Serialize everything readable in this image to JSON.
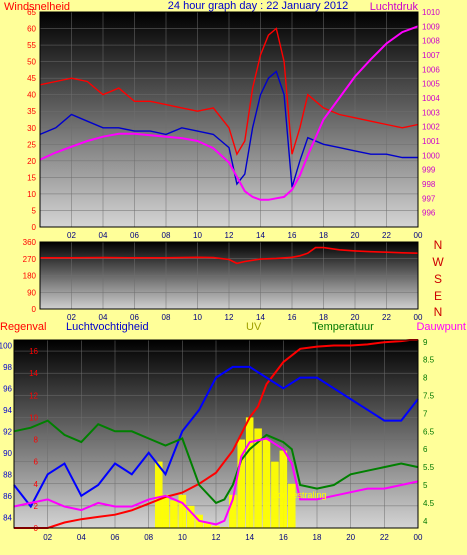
{
  "chart_data": [
    {
      "type": "line",
      "title": "24 hour graph day : 22 January 2012",
      "left_label": "Windsnelheid",
      "right_label": "Luchtdruk",
      "x_ticks": [
        "02",
        "04",
        "06",
        "08",
        "10",
        "12",
        "14",
        "16",
        "18",
        "20",
        "22",
        "00"
      ],
      "x_range": [
        0,
        24
      ],
      "left_axis": {
        "range": [
          0,
          65
        ],
        "ticks": [
          0,
          5,
          10,
          15,
          20,
          25,
          30,
          35,
          40,
          45,
          50,
          55,
          60,
          65
        ]
      },
      "right_axis": {
        "range": [
          995,
          1010
        ],
        "ticks": [
          996,
          997,
          998,
          999,
          1000,
          1001,
          1002,
          1003,
          1004,
          1005,
          1006,
          1007,
          1008,
          1009,
          1010
        ]
      },
      "series": [
        {
          "color": "#ff0000",
          "axis": "left",
          "x": [
            0,
            1,
            2,
            3,
            4,
            5,
            6,
            7,
            8,
            9,
            10,
            11,
            12,
            12.5,
            13,
            13.5,
            14,
            14.5,
            15,
            15.5,
            16,
            16.5,
            17,
            18,
            19,
            20,
            21,
            22,
            23,
            24
          ],
          "y": [
            43,
            44,
            45,
            44,
            40,
            42,
            38,
            38,
            37,
            36,
            35,
            36,
            30,
            22,
            26,
            42,
            52,
            58,
            60,
            50,
            22,
            30,
            40,
            36,
            34,
            33,
            32,
            31,
            30,
            31
          ]
        },
        {
          "color": "#0000cc",
          "axis": "left",
          "x": [
            0,
            1,
            2,
            3,
            4,
            5,
            6,
            7,
            8,
            9,
            10,
            11,
            12,
            12.5,
            13,
            13.5,
            14,
            14.5,
            15,
            15.5,
            16,
            16.5,
            17,
            18,
            19,
            20,
            21,
            22,
            23,
            24
          ],
          "y": [
            28,
            30,
            34,
            32,
            30,
            30,
            29,
            29,
            28,
            30,
            29,
            28,
            24,
            13,
            16,
            30,
            40,
            45,
            47,
            40,
            12,
            20,
            27,
            25,
            24,
            23,
            22,
            22,
            21,
            21
          ]
        },
        {
          "color": "#ff00ff",
          "axis": "right",
          "x": [
            0,
            1,
            2,
            3,
            4,
            5,
            6,
            7,
            8,
            9,
            10,
            11,
            12,
            12.5,
            13,
            13.5,
            14,
            14.5,
            15,
            15.5,
            16,
            16.5,
            17,
            18,
            19,
            20,
            21,
            22,
            23,
            24
          ],
          "y": [
            999.7,
            1000.2,
            1000.6,
            1001.0,
            1001.3,
            1001.5,
            1001.5,
            1001.4,
            1001.3,
            1001.2,
            1001.0,
            1000.5,
            999.5,
            998.5,
            997.5,
            997.1,
            996.9,
            996.9,
            997.0,
            997.1,
            997.6,
            998.6,
            1000.0,
            1002.5,
            1004.0,
            1005.5,
            1006.7,
            1007.8,
            1008.6,
            1009.0
          ]
        }
      ]
    },
    {
      "type": "line",
      "right_label_letters": [
        "N",
        "W",
        "S",
        "E",
        "N"
      ],
      "x_ticks": [
        "02",
        "04",
        "06",
        "08",
        "10",
        "12",
        "14",
        "16",
        "18",
        "20",
        "22",
        "00"
      ],
      "x_range": [
        0,
        24
      ],
      "y_range": [
        0,
        360
      ],
      "y_ticks": [
        0,
        90,
        180,
        270,
        360
      ],
      "series": [
        {
          "color": "#ff0000",
          "x": [
            0,
            2,
            4,
            6,
            8,
            10,
            11,
            12,
            12.5,
            13,
            14,
            15,
            16,
            16.5,
            17,
            17.5,
            18,
            19,
            20,
            21,
            22,
            23,
            24
          ],
          "y": [
            275,
            275,
            276,
            275,
            275,
            278,
            276,
            266,
            245,
            255,
            268,
            272,
            278,
            286,
            300,
            330,
            330,
            318,
            312,
            308,
            305,
            302,
            300
          ]
        }
      ]
    },
    {
      "type": "line",
      "labels": [
        "Regenval",
        "Luchtvochtigheid",
        "UV",
        "Temperatuur",
        "Dauwpunt"
      ],
      "annotation": "Zonnestraling",
      "x_ticks": [
        "02",
        "04",
        "06",
        "08",
        "10",
        "12",
        "14",
        "16",
        "18",
        "20",
        "22",
        "00"
      ],
      "x_range": [
        0,
        24
      ],
      "axis_regen": {
        "range": [
          0,
          17
        ],
        "ticks": [
          0,
          2,
          4,
          6,
          8,
          10,
          12,
          14,
          16
        ]
      },
      "axis_vocht": {
        "range": [
          83,
          100.5
        ],
        "ticks": [
          84,
          86,
          88,
          90,
          92,
          94,
          96,
          98,
          100
        ]
      },
      "axis_temp": {
        "range": [
          3.8,
          9.05
        ],
        "ticks": [
          4,
          4.5,
          5,
          5.5,
          6,
          6.5,
          7,
          7.5,
          8,
          8.5,
          9
        ]
      },
      "series": [
        {
          "name": "Regenval",
          "color": "#ff0000",
          "axis": "regen",
          "x": [
            0,
            2,
            3,
            4,
            5,
            6,
            7,
            8,
            9,
            10,
            11,
            12,
            13,
            14,
            14.5,
            15,
            16,
            17,
            18,
            19,
            20,
            21,
            22,
            23,
            23.5,
            24
          ],
          "y": [
            0,
            0,
            0.5,
            0.8,
            1.0,
            1.2,
            1.6,
            2.2,
            2.8,
            3.2,
            4.0,
            5.0,
            7.0,
            10.0,
            11.0,
            13.0,
            15.0,
            16.2,
            16.4,
            16.5,
            16.5,
            16.6,
            16.8,
            16.9,
            17,
            17
          ]
        },
        {
          "name": "Luchtvochtigheid",
          "color": "#0000ff",
          "axis": "vocht",
          "x": [
            0,
            1,
            2,
            3,
            4,
            5,
            6,
            7,
            8,
            9,
            10,
            11,
            12,
            13,
            14,
            15,
            16,
            17,
            18,
            19,
            20,
            21,
            22,
            23,
            24
          ],
          "y": [
            87,
            85,
            88,
            89,
            86,
            87,
            89,
            88,
            90,
            88,
            92,
            94,
            97,
            98,
            98,
            97,
            96,
            97,
            97,
            96,
            95,
            94,
            93,
            93,
            95
          ]
        },
        {
          "name": "Temperatuur",
          "color": "#008000",
          "axis": "temp",
          "x": [
            0,
            1,
            2,
            3,
            4,
            5,
            6,
            7,
            8,
            9,
            10,
            11,
            12,
            12.5,
            13,
            13.5,
            14,
            15,
            16,
            16.5,
            17,
            18,
            19,
            20,
            21,
            22,
            23,
            24
          ],
          "y": [
            6.5,
            6.6,
            6.8,
            6.4,
            6.2,
            6.7,
            6.5,
            6.5,
            6.3,
            6.1,
            6.3,
            5.0,
            4.5,
            4.6,
            5.0,
            5.7,
            6.0,
            6.4,
            6.2,
            6.0,
            5.0,
            4.9,
            5.0,
            5.3,
            5.4,
            5.5,
            5.6,
            5.5
          ]
        },
        {
          "name": "Dauwpunt",
          "color": "#ff00ff",
          "axis": "temp",
          "x": [
            0,
            1,
            2,
            3,
            4,
            5,
            6,
            7,
            8,
            9,
            10,
            11,
            12,
            12.5,
            13,
            13.5,
            14,
            15,
            16,
            16.5,
            17,
            18,
            19,
            20,
            21,
            22,
            23,
            24
          ],
          "y": [
            4.4,
            4.5,
            4.6,
            4.4,
            4.3,
            4.5,
            4.4,
            4.4,
            4.6,
            4.7,
            4.5,
            4.0,
            3.9,
            4.0,
            4.6,
            5.8,
            6.2,
            6.3,
            6.0,
            5.6,
            4.6,
            4.6,
            4.7,
            4.8,
            4.9,
            4.9,
            5.0,
            5.1
          ]
        },
        {
          "name": "UV",
          "color": "#ffff00",
          "axis": "regen",
          "style": "bars",
          "x": [
            8.6,
            9,
            9.5,
            10,
            10.5,
            11,
            11.5,
            12,
            12.5,
            13,
            13.5,
            14,
            14.5,
            15,
            15.5,
            16,
            16.5
          ],
          "y": [
            6,
            3,
            2.5,
            3,
            2,
            1.2,
            0.5,
            0.2,
            0.1,
            3,
            8,
            10,
            9,
            8,
            6,
            7,
            4
          ]
        }
      ]
    }
  ]
}
